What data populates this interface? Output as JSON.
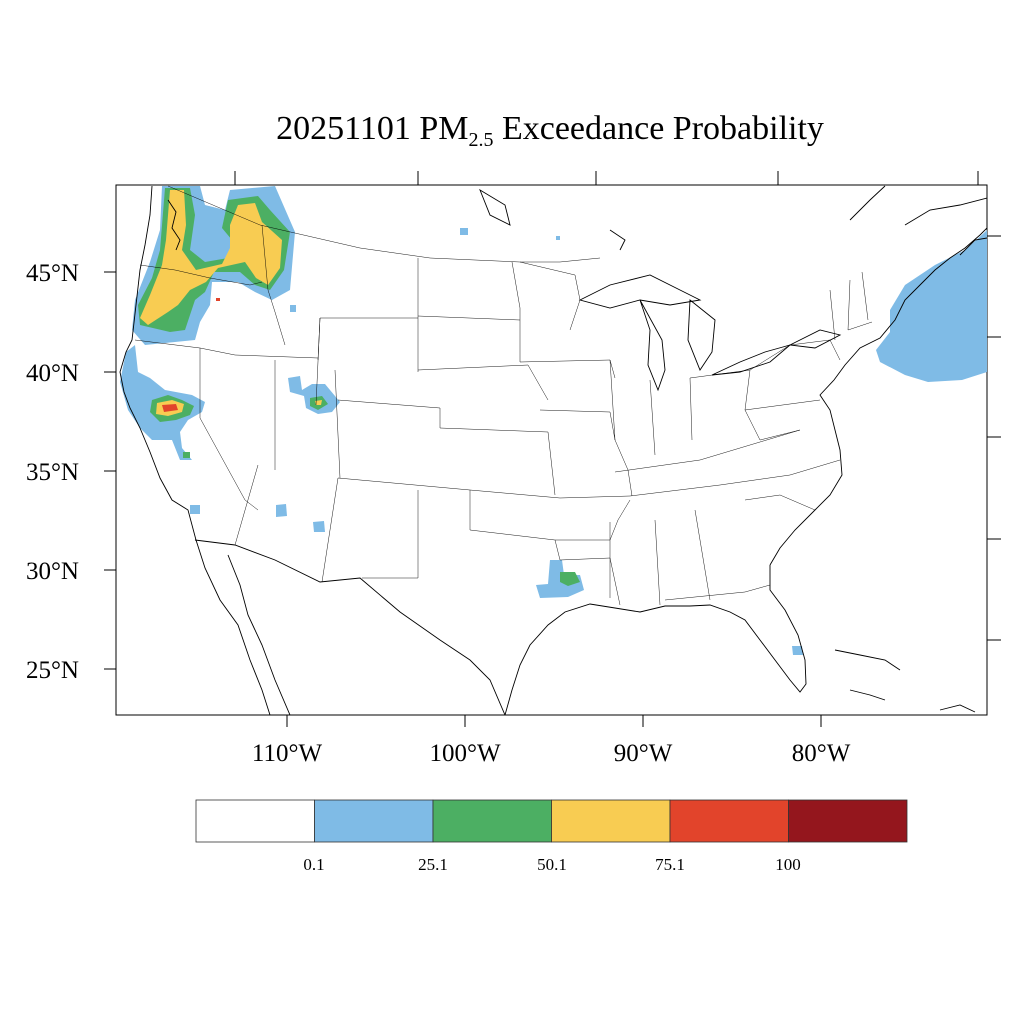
{
  "title": {
    "date": "20251101",
    "species_main": "PM",
    "species_sub": "2.5",
    "rest": "Exceedance Probability"
  },
  "map": {
    "lon_range": [
      -119.5,
      -70.5
    ],
    "lat_range": [
      22.8,
      49.5
    ],
    "lat_labels": [
      "45°N",
      "40°N",
      "35°N",
      "30°N",
      "25°N"
    ],
    "lon_labels": [
      "110°W",
      "100°W",
      "90°W",
      "80°W"
    ],
    "fill_colors": {
      "bin1": "#7fbbe6",
      "bin2": "#4caf63",
      "bin3": "#f8cc52",
      "bin4": "#e2442b",
      "bin5": "#94161d"
    }
  },
  "legend": {
    "colors": [
      "#ffffff",
      "#7fbbe6",
      "#4caf63",
      "#f8cc52",
      "#e2442b",
      "#94161d"
    ],
    "labels": [
      "0.1",
      "25.1",
      "50.1",
      "75.1",
      "100"
    ]
  }
}
